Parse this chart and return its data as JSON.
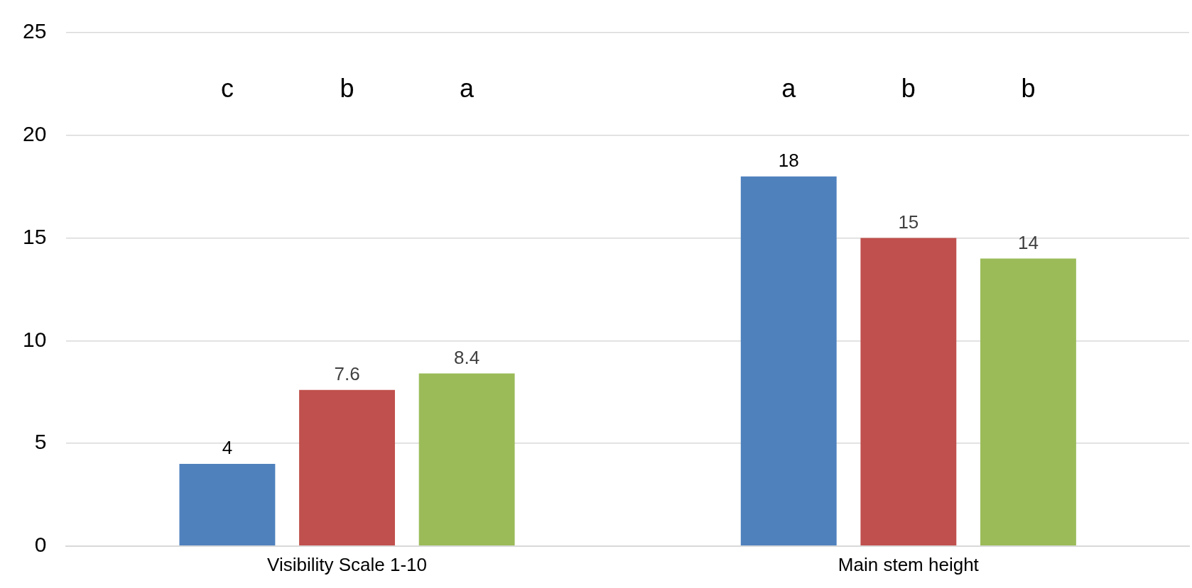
{
  "chart_data": {
    "type": "bar",
    "categories": [
      "Visibility Scale 1-10",
      "Main stem height"
    ],
    "series": [
      {
        "color": "#4f81bd",
        "values": [
          4,
          18
        ]
      },
      {
        "color": "#c0504d",
        "values": [
          7.6,
          15
        ]
      },
      {
        "color": "#9bbb59",
        "values": [
          8.4,
          14
        ]
      }
    ],
    "ylim": [
      0,
      25
    ],
    "yticks": [
      0,
      5,
      10,
      15,
      20,
      25
    ],
    "grid": "y",
    "legend": false,
    "data_labels": true,
    "annotations": [
      "c",
      "b",
      "a",
      "a",
      "b",
      "b"
    ]
  }
}
